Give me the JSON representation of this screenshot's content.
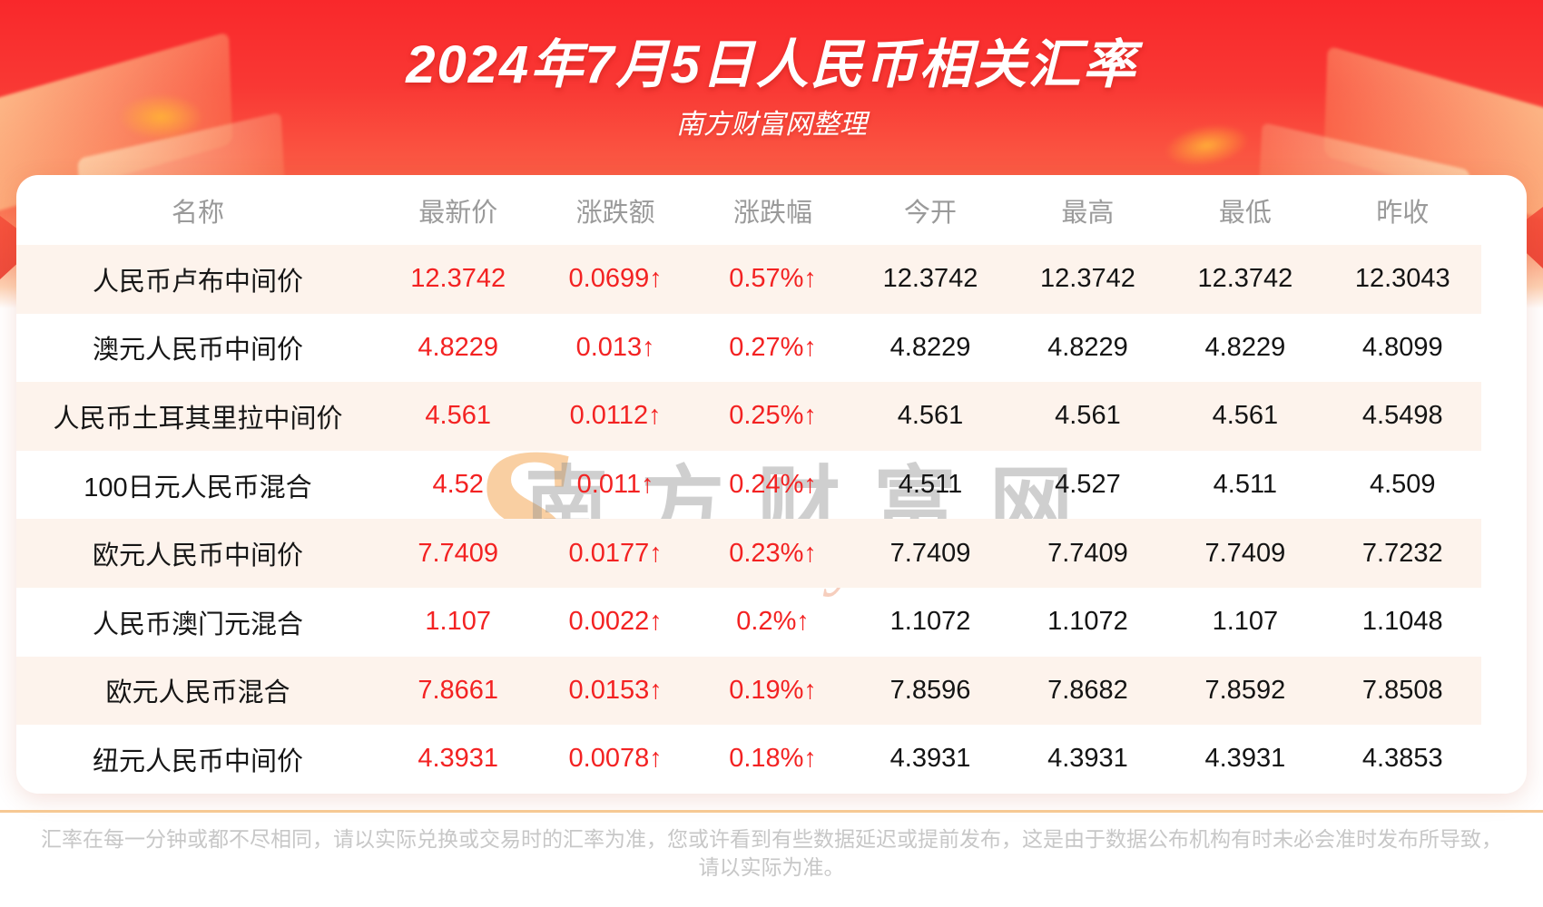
{
  "banner": {
    "title": "2024年7月5日人民币相关汇率",
    "subtitle": "南方财富网整理"
  },
  "table": {
    "columns": [
      "名称",
      "最新价",
      "涨跌额",
      "涨跌幅",
      "今开",
      "最高",
      "最低",
      "昨收"
    ],
    "rows": [
      {
        "name": "人民币卢布中间价",
        "latest": "12.3742",
        "change": "0.0699↑",
        "change_pct": "0.57%↑",
        "open": "12.3742",
        "high": "12.3742",
        "low": "12.3742",
        "prev_close": "12.3043"
      },
      {
        "name": "澳元人民币中间价",
        "latest": "4.8229",
        "change": "0.013↑",
        "change_pct": "0.27%↑",
        "open": "4.8229",
        "high": "4.8229",
        "low": "4.8229",
        "prev_close": "4.8099"
      },
      {
        "name": "人民币土耳其里拉中间价",
        "latest": "4.561",
        "change": "0.0112↑",
        "change_pct": "0.25%↑",
        "open": "4.561",
        "high": "4.561",
        "low": "4.561",
        "prev_close": "4.5498"
      },
      {
        "name": "100日元人民币混合",
        "latest": "4.52",
        "change": "0.011↑",
        "change_pct": "0.24%↑",
        "open": "4.511",
        "high": "4.527",
        "low": "4.511",
        "prev_close": "4.509"
      },
      {
        "name": "欧元人民币中间价",
        "latest": "7.7409",
        "change": "0.0177↑",
        "change_pct": "0.23%↑",
        "open": "7.7409",
        "high": "7.7409",
        "low": "7.7409",
        "prev_close": "7.7232"
      },
      {
        "name": "人民币澳门元混合",
        "latest": "1.107",
        "change": "0.0022↑",
        "change_pct": "0.2%↑",
        "open": "1.1072",
        "high": "1.1072",
        "low": "1.107",
        "prev_close": "1.1048"
      },
      {
        "name": "欧元人民币混合",
        "latest": "7.8661",
        "change": "0.0153↑",
        "change_pct": "0.19%↑",
        "open": "7.8596",
        "high": "7.8682",
        "low": "7.8592",
        "prev_close": "7.8508"
      },
      {
        "name": "纽元人民币中间价",
        "latest": "4.3931",
        "change": "0.0078↑",
        "change_pct": "0.18%↑",
        "open": "4.3931",
        "high": "4.3931",
        "low": "4.3931",
        "prev_close": "4.3853"
      }
    ]
  },
  "watermark": {
    "swoosh": "S",
    "cn": "南方财富网",
    "en": "outhmoney.com"
  },
  "footer": {
    "disclaimer_line1": "汇率在每一分钟或都不尽相同，请以实际兑换或交易时的汇率为准，您或许看到有些数据延迟或提前发布，这是由于数据公布机构有时未必会准时发布所导致，",
    "disclaimer_line2": "请以实际为准。"
  },
  "colors": {
    "accent_red": "#f32222",
    "banner_red": "#f9282b",
    "row_alt_bg": "#fdf3ec",
    "divider_tan": "#f6c893",
    "header_gray": "#9a9a9a",
    "footer_gray": "#c7c7c7"
  }
}
